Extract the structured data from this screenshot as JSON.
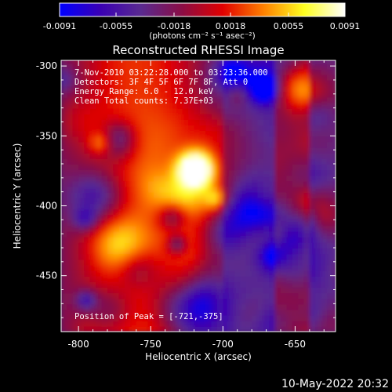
{
  "chart_data": {
    "type": "heatmap",
    "title": "Reconstructed RHESSI Image",
    "xlabel": "Heliocentric X (arcsec)",
    "ylabel": "Heliocentric Y (arcsec)",
    "xlim": [
      -812,
      -622
    ],
    "ylim": [
      -490,
      -296
    ],
    "xticks": [
      -800,
      -750,
      -700,
      -650
    ],
    "xtick_labels": [
      "-800",
      "-750",
      "-700",
      "-650"
    ],
    "yticks": [
      -300,
      -350,
      -400,
      -450
    ],
    "ytick_labels": [
      "-300",
      "-350",
      "-400",
      "-450"
    ],
    "colorbar": {
      "min": -0.0091,
      "max": 0.0091,
      "ticks": [
        -0.0091,
        -0.0055,
        -0.0018,
        0.0018,
        0.0055,
        0.0091
      ],
      "tick_labels": [
        "-0.0091",
        "-0.0055",
        "-0.0018",
        "0.0018",
        "0.0055",
        "0.0091"
      ],
      "unit_label": "(photons cm⁻² s⁻¹ asec⁻²)",
      "colormap": [
        "#0000ff",
        "#3a00b4",
        "#5a2a90",
        "#8a0d45",
        "#e00000",
        "#ff8000",
        "#ffff20",
        "#ffffff"
      ]
    },
    "peak": {
      "x": -721,
      "y": -375,
      "value": 0.0091
    },
    "annotations": [
      "7-Nov-2010 03:22:28.000 to 03:23:36.000",
      "Detectors: 3F 4F 5F 6F 7F 8F, Att 0",
      "Energy Range: 6.0 - 12.0 keV",
      "Clean     Total counts: 7.37E+03"
    ],
    "peak_label": "Position of Peak = [-721,-375]"
  },
  "footer_timestamp": "10-May-2022 20:32"
}
